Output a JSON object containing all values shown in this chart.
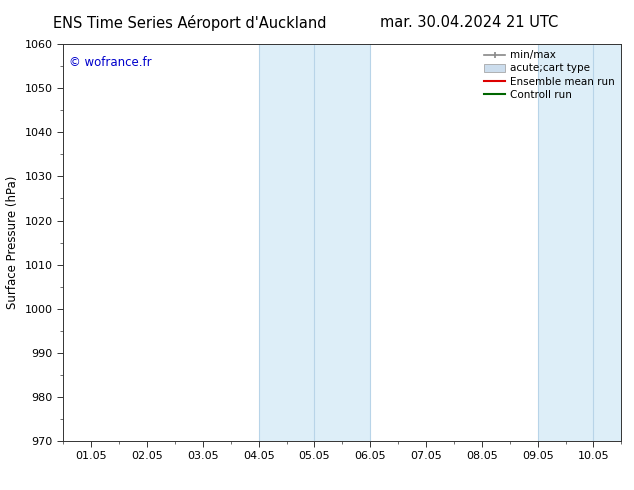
{
  "title_left": "ENS Time Series Aéroport d'Auckland",
  "title_right": "mar. 30.04.2024 21 UTC",
  "ylabel": "Surface Pressure (hPa)",
  "watermark": "© wofrance.fr",
  "watermark_color": "#0000cc",
  "ylim": [
    970,
    1060
  ],
  "yticks": [
    970,
    980,
    990,
    1000,
    1010,
    1020,
    1030,
    1040,
    1050,
    1060
  ],
  "xtick_labels": [
    "01.05",
    "02.05",
    "03.05",
    "04.05",
    "05.05",
    "06.05",
    "07.05",
    "08.05",
    "09.05",
    "10.05"
  ],
  "shaded_regions": [
    {
      "xmin": 3.0,
      "xmax": 4.0,
      "color": "#ddeef8"
    },
    {
      "xmin": 4.0,
      "xmax": 5.0,
      "color": "#ddeef8"
    },
    {
      "xmin": 8.0,
      "xmax": 9.0,
      "color": "#ddeef8"
    },
    {
      "xmin": 9.0,
      "xmax": 9.5,
      "color": "#ddeef8"
    }
  ],
  "shaded_vlines": [
    3.0,
    4.0,
    5.0,
    8.0,
    9.0,
    9.5
  ],
  "shaded_vline_color": "#b8d4e8",
  "legend_entries": [
    {
      "label": "min/max",
      "color": "#888888",
      "style": "minmax"
    },
    {
      "label": "acute;cart type",
      "color": "#ccdded",
      "style": "box"
    },
    {
      "label": "Ensemble mean run",
      "color": "#dd0000",
      "style": "line"
    },
    {
      "label": "Controll run",
      "color": "#006600",
      "style": "line"
    }
  ],
  "bg_color": "#ffffff",
  "plot_bg_color": "#ffffff",
  "title_fontsize": 10.5,
  "tick_fontsize": 8,
  "ylabel_fontsize": 8.5,
  "legend_fontsize": 7.5,
  "watermark_fontsize": 8.5
}
